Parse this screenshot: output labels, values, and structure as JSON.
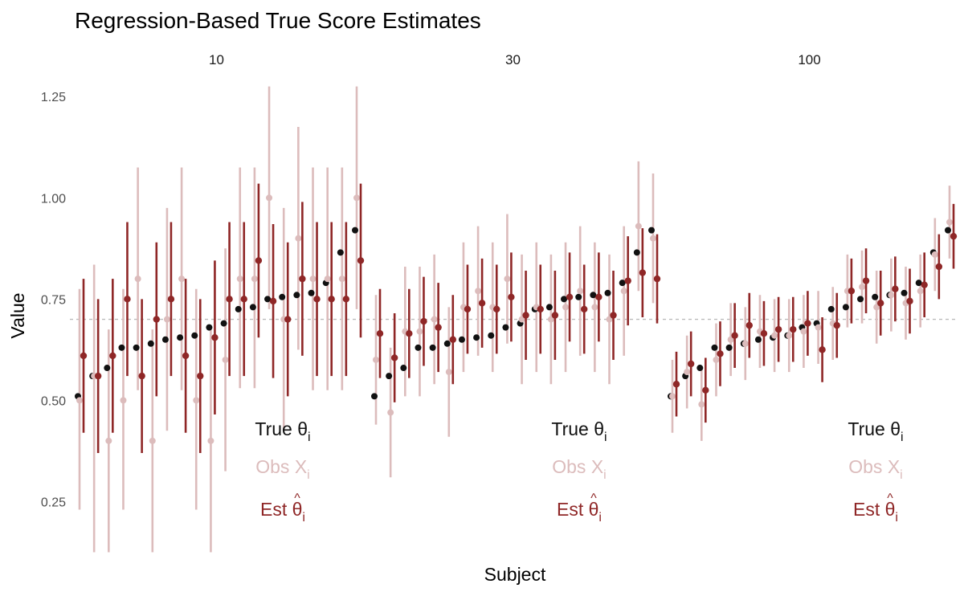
{
  "chart_data": {
    "type": "scatter",
    "title": "Regression-Based True Score Estimates",
    "xlabel": "Subject",
    "ylabel": "Value",
    "ylim": [
      0.12,
      1.3
    ],
    "yticks": [
      "0.25",
      "0.50",
      "0.75",
      "1.00",
      "1.25"
    ],
    "ytick_values": [
      0.25,
      0.5,
      0.75,
      1.0,
      1.25
    ],
    "reference_line": 0.7,
    "grid": false,
    "legend_position": "bottom-right of each panel",
    "colors": {
      "true": "#111111",
      "obs": "#dcbcbc",
      "est": "#8f2727",
      "reference": "#bbbbbb"
    },
    "legend": {
      "true": {
        "base": "True ",
        "symbol": "θ",
        "subscript": "i"
      },
      "obs": {
        "base": "Obs ",
        "symbol": "X",
        "subscript": "i"
      },
      "est": {
        "base": "Est ",
        "symbol": "θ",
        "hat": "^",
        "subscript": "i"
      }
    },
    "true_theta": [
      0.51,
      0.56,
      0.58,
      0.63,
      0.63,
      0.64,
      0.65,
      0.655,
      0.66,
      0.68,
      0.69,
      0.725,
      0.73,
      0.75,
      0.755,
      0.76,
      0.765,
      0.79,
      0.865,
      0.92
    ],
    "panels": [
      {
        "label": "10",
        "obs": [
          0.5,
          0.56,
          0.4,
          0.5,
          0.8,
          0.4,
          0.7,
          0.8,
          0.5,
          0.4,
          0.6,
          0.8,
          0.8,
          1.0,
          0.7,
          0.9,
          0.8,
          0.8,
          0.8,
          1.0
        ],
        "obs_lo": [
          0.23,
          0.125,
          0.125,
          0.23,
          0.525,
          0.125,
          0.425,
          0.525,
          0.23,
          0.125,
          0.325,
          0.53,
          0.53,
          0.725,
          0.425,
          0.625,
          0.525,
          0.525,
          0.525,
          0.725
        ],
        "obs_hi": [
          0.775,
          0.835,
          0.675,
          0.775,
          1.075,
          0.675,
          0.975,
          1.075,
          0.775,
          0.675,
          0.875,
          1.075,
          1.075,
          1.275,
          0.975,
          1.175,
          1.075,
          1.075,
          1.075,
          1.275
        ],
        "est": [
          0.61,
          0.56,
          0.61,
          0.75,
          0.56,
          0.7,
          0.75,
          0.61,
          0.56,
          0.655,
          0.75,
          0.75,
          0.845,
          0.745,
          0.7,
          0.8,
          0.75,
          0.75,
          0.75,
          0.845
        ],
        "est_lo": [
          0.42,
          0.37,
          0.42,
          0.56,
          0.37,
          0.51,
          0.56,
          0.42,
          0.37,
          0.465,
          0.56,
          0.56,
          0.655,
          0.555,
          0.51,
          0.61,
          0.56,
          0.56,
          0.56,
          0.655
        ],
        "est_hi": [
          0.8,
          0.75,
          0.8,
          0.94,
          0.75,
          0.89,
          0.94,
          0.8,
          0.75,
          0.845,
          0.94,
          0.94,
          1.035,
          0.935,
          0.89,
          0.99,
          0.94,
          0.94,
          0.94,
          1.035
        ]
      },
      {
        "label": "30",
        "obs": [
          0.6,
          0.47,
          0.67,
          0.67,
          0.7,
          0.57,
          0.73,
          0.77,
          0.73,
          0.8,
          0.7,
          0.73,
          0.7,
          0.73,
          0.77,
          0.73,
          0.7,
          0.77,
          0.93,
          0.9
        ],
        "obs_lo": [
          0.44,
          0.31,
          0.51,
          0.51,
          0.54,
          0.41,
          0.57,
          0.61,
          0.57,
          0.64,
          0.54,
          0.57,
          0.54,
          0.57,
          0.61,
          0.57,
          0.54,
          0.61,
          0.77,
          0.74
        ],
        "obs_hi": [
          0.76,
          0.63,
          0.83,
          0.83,
          0.86,
          0.73,
          0.89,
          0.93,
          0.89,
          0.96,
          0.86,
          0.89,
          0.86,
          0.89,
          0.93,
          0.89,
          0.86,
          0.93,
          1.09,
          1.06
        ],
        "est": [
          0.665,
          0.605,
          0.665,
          0.695,
          0.68,
          0.65,
          0.725,
          0.74,
          0.725,
          0.755,
          0.71,
          0.725,
          0.71,
          0.755,
          0.725,
          0.755,
          0.71,
          0.795,
          0.815,
          0.8
        ],
        "est_lo": [
          0.555,
          0.495,
          0.555,
          0.585,
          0.57,
          0.54,
          0.615,
          0.63,
          0.615,
          0.645,
          0.6,
          0.615,
          0.6,
          0.645,
          0.615,
          0.645,
          0.6,
          0.685,
          0.705,
          0.69
        ],
        "est_hi": [
          0.775,
          0.715,
          0.775,
          0.805,
          0.79,
          0.76,
          0.835,
          0.85,
          0.835,
          0.865,
          0.82,
          0.835,
          0.82,
          0.865,
          0.835,
          0.865,
          0.82,
          0.905,
          0.925,
          0.91
        ]
      },
      {
        "label": "100",
        "obs": [
          0.51,
          0.57,
          0.49,
          0.6,
          0.65,
          0.64,
          0.67,
          0.66,
          0.66,
          0.67,
          0.68,
          0.69,
          0.77,
          0.78,
          0.73,
          0.76,
          0.74,
          0.77,
          0.86,
          0.94
        ],
        "obs_lo": [
          0.42,
          0.48,
          0.4,
          0.51,
          0.56,
          0.55,
          0.58,
          0.57,
          0.57,
          0.58,
          0.59,
          0.6,
          0.68,
          0.69,
          0.64,
          0.67,
          0.65,
          0.68,
          0.77,
          0.85
        ],
        "obs_hi": [
          0.6,
          0.66,
          0.58,
          0.69,
          0.74,
          0.73,
          0.76,
          0.75,
          0.75,
          0.76,
          0.77,
          0.78,
          0.86,
          0.87,
          0.82,
          0.85,
          0.83,
          0.86,
          0.95,
          1.03
        ],
        "est": [
          0.54,
          0.59,
          0.525,
          0.615,
          0.66,
          0.685,
          0.665,
          0.675,
          0.675,
          0.69,
          0.625,
          0.685,
          0.77,
          0.795,
          0.74,
          0.775,
          0.745,
          0.785,
          0.83,
          0.905
        ],
        "est_lo": [
          0.46,
          0.51,
          0.445,
          0.535,
          0.58,
          0.605,
          0.585,
          0.595,
          0.595,
          0.61,
          0.545,
          0.605,
          0.69,
          0.715,
          0.66,
          0.695,
          0.665,
          0.705,
          0.75,
          0.825
        ],
        "est_hi": [
          0.62,
          0.67,
          0.605,
          0.695,
          0.74,
          0.765,
          0.745,
          0.755,
          0.755,
          0.77,
          0.705,
          0.765,
          0.85,
          0.875,
          0.82,
          0.855,
          0.825,
          0.865,
          0.91,
          0.985
        ]
      }
    ]
  }
}
